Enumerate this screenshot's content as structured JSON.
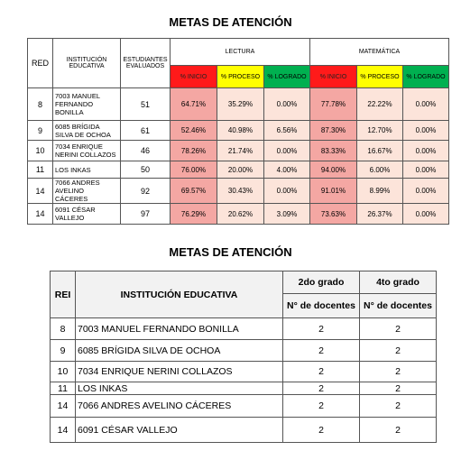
{
  "table1": {
    "title": "METAS DE ATENCIÓN",
    "headers": {
      "red": "RED",
      "institution": "INSTITUCIÓN EDUCATIVA",
      "students": "ESTUDIANTES EVALUADOS",
      "reading": "LECTURA",
      "math": "MATEMÁTICA",
      "reading_levels": [
        "% INICIO",
        "% PROCESO",
        "% LOGRADO"
      ],
      "math_levels": [
        "% INICIO",
        "% PROCESO",
        "% LOGRADO"
      ]
    },
    "rows": [
      [
        "8",
        "7003 MANUEL FERNANDO BONILLA",
        "51",
        "64.71%",
        "35.29%",
        "0.00%",
        "77.78%",
        "22.22%",
        "0.00%"
      ],
      [
        "9",
        "6085 BRÍGIDA SILVA DE OCHOA",
        "61",
        "52.46%",
        "40.98%",
        "6.56%",
        "87.30%",
        "12.70%",
        "0.00%"
      ],
      [
        "10",
        "7034 ENRIQUE NERINI COLLAZOS",
        "46",
        "78.26%",
        "21.74%",
        "0.00%",
        "83.33%",
        "16.67%",
        "0.00%"
      ],
      [
        "11",
        "LOS INKAS",
        "50",
        "76.00%",
        "20.00%",
        "4.00%",
        "94.00%",
        "6.00%",
        "0.00%"
      ],
      [
        "14",
        "7066 ANDRES AVELINO CÁCERES",
        "92",
        "69.57%",
        "30.43%",
        "0.00%",
        "91.01%",
        "8.99%",
        "0.00%"
      ],
      [
        "14",
        "6091 CÉSAR VALLEJO",
        "97",
        "76.29%",
        "20.62%",
        "3.09%",
        "73.63%",
        "26.37%",
        "0.00%"
      ]
    ]
  },
  "table2": {
    "title": "METAS DE ATENCIÓN",
    "headers": {
      "rei": "REI",
      "institution": "INSTITUCIÓN EDUCATIVA",
      "grades": [
        "2do grado",
        "4to grado"
      ],
      "subheaders": [
        "N° de docentes",
        "N° de docentes"
      ]
    },
    "rows": [
      [
        "8",
        "7003 MANUEL FERNANDO BONILLA",
        "2",
        "2"
      ],
      [
        "9",
        "6085 BRÍGIDA SILVA DE OCHOA",
        "2",
        "2"
      ],
      [
        "10",
        "7034 ENRIQUE NERINI COLLAZOS",
        "2",
        "2"
      ],
      [
        "11",
        "LOS INKAS",
        "2",
        "2"
      ],
      [
        "14",
        "7066 ANDRES AVELINO CÁCERES",
        "2",
        "2"
      ],
      [
        "14",
        "6091 CÉSAR VALLEJO",
        "2",
        "2"
      ]
    ]
  }
}
